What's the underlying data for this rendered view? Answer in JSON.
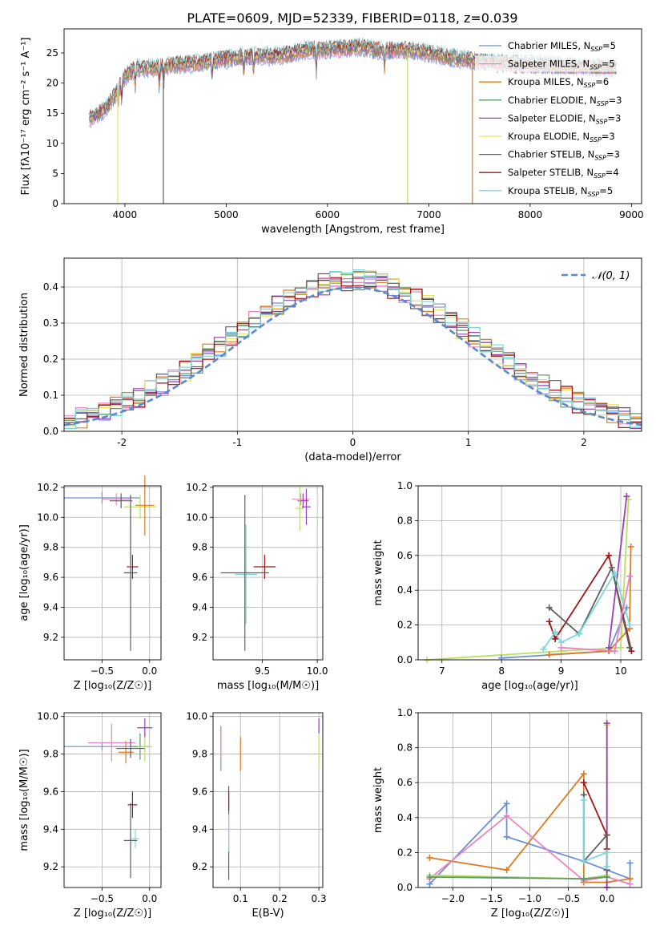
{
  "title": "PLATE=0609, MJD=52339, FIBERID=0118, z=0.039",
  "colors": {
    "c0": "#6a8fd8",
    "c1": "#e983bf",
    "c2": "#e07a1f",
    "c3": "#5a9a6a",
    "c4": "#9b3fb5",
    "c5": "#e8e060",
    "c6": "#5f5f5f",
    "c7": "#a01717",
    "c8": "#7cd8d8",
    "c9": "#b8e060"
  },
  "chart_data": [
    {
      "type": "line",
      "id": "spectrum",
      "xlabel": "wavelength [Angstrom, rest frame]",
      "ylabel": "Flux [fλ10⁻¹⁷ erg cm⁻² s⁻¹ A⁻¹]",
      "xlim": [
        3400,
        9100
      ],
      "ylim": [
        0,
        29
      ],
      "xticks": [
        4000,
        5000,
        6000,
        7000,
        8000,
        9000
      ],
      "yticks": [
        0,
        5,
        10,
        15,
        20,
        25
      ],
      "legend_position": "top-right",
      "series": [
        {
          "name": "Chabrier MILES, NSSP=5",
          "label_main": "Chabrier MILES, N",
          "label_sub": "SSP",
          "label_end": "=5",
          "color": "c0"
        },
        {
          "name": "Salpeter MILES, NSSP=5",
          "label_main": "Salpeter MILES, N",
          "label_sub": "SSP",
          "label_end": "=5",
          "color": "c1"
        },
        {
          "name": "Kroupa MILES, NSSP=6",
          "label_main": "Kroupa MILES, N",
          "label_sub": "SSP",
          "label_end": "=6",
          "color": "c2"
        },
        {
          "name": "Chabrier ELODIE, NSSP=3",
          "label_main": "Chabrier ELODIE, N",
          "label_sub": "SSP",
          "label_end": "=3",
          "color": "c3"
        },
        {
          "name": "Salpeter ELODIE, NSSP=3",
          "label_main": "Salpeter ELODIE, N",
          "label_sub": "SSP",
          "label_end": "=3",
          "color": "c4"
        },
        {
          "name": "Kroupa ELODIE, NSSP=3",
          "label_main": "Kroupa ELODIE, N",
          "label_sub": "SSP",
          "label_end": "=3",
          "color": "c5"
        },
        {
          "name": "Chabrier STELIB, NSSP=3",
          "label_main": "Chabrier STELIB, N",
          "label_sub": "SSP",
          "label_end": "=3",
          "color": "c6"
        },
        {
          "name": "Salpeter STELIB, NSSP=4",
          "label_main": "Salpeter STELIB, N",
          "label_sub": "SSP",
          "label_end": "=4",
          "color": "c7"
        },
        {
          "name": "Kroupa STELIB, NSSP=5",
          "label_main": "Kroupa STELIB, N",
          "label_sub": "SSP",
          "label_end": "=5",
          "color": "c8"
        }
      ],
      "continuum": {
        "x": [
          3650,
          3800,
          3900,
          4000,
          4100,
          4300,
          4500,
          4800,
          5000,
          5200,
          5500,
          5800,
          6000,
          6300,
          6500,
          6800,
          7000,
          7300,
          7600,
          8000,
          8400,
          8850
        ],
        "y": [
          14,
          15.5,
          18,
          21,
          22.5,
          22.5,
          23,
          23.5,
          24,
          24.5,
          24.5,
          25.5,
          25.5,
          26,
          25.5,
          25.5,
          25,
          24,
          23.5,
          23,
          22.8,
          22.5
        ]
      },
      "gaps": [
        {
          "x": 4380,
          "color": "c6"
        },
        {
          "x": 3930,
          "color": "c5"
        },
        {
          "x": 6790,
          "color": "c9"
        },
        {
          "x": 7430,
          "color": "c2"
        }
      ]
    },
    {
      "type": "histogram",
      "id": "residuals",
      "xlabel": "(data-model)/error",
      "ylabel": "Normed distribution",
      "xlim": [
        -2.5,
        2.5
      ],
      "ylim": [
        0,
        0.48
      ],
      "xticks": [
        -2,
        -1,
        0,
        1,
        2
      ],
      "yticks": [
        0,
        0.1,
        0.2,
        0.3,
        0.4
      ],
      "ytick_labels": [
        "0.0",
        "0.1",
        "0.2",
        "0.3",
        "0.4"
      ],
      "bin_width": 0.1,
      "gaussian_label": "𝒩(0, 1)",
      "gaussian_color": "#5b88d0",
      "legend_position": "top-right",
      "histogram_colors": [
        "c0",
        "c1",
        "c2",
        "c3",
        "c4",
        "c5",
        "c6",
        "c7",
        "c8"
      ]
    },
    {
      "type": "scatter",
      "id": "age-vs-z",
      "xlabel": "Z [log₁₀(Z/Z☉)]",
      "ylabel": "age  [log₁₀(age/yr)]",
      "xlim": [
        -0.9,
        0.12
      ],
      "ylim": [
        9.05,
        10.21
      ],
      "xticks": [
        -0.5,
        0.0
      ],
      "xtick_labels": [
        "−0.5",
        "0.0"
      ],
      "yticks": [
        9.2,
        9.4,
        9.6,
        9.8,
        10.0,
        10.2
      ],
      "ytick_labels": [
        "9.2",
        "9.4",
        "9.6",
        "9.8",
        "10.0",
        "10.2"
      ],
      "points": [
        {
          "x": -0.5,
          "y": 10.13,
          "xerr": 0.4,
          "yerr": 0.04,
          "color": "c0"
        },
        {
          "x": -0.35,
          "y": 10.12,
          "xerr": 0.15,
          "yerr": 0.04,
          "color": "c1"
        },
        {
          "x": -0.3,
          "y": 10.11,
          "xerr": 0.12,
          "yerr": 0.05,
          "color": "c6"
        },
        {
          "x": -0.1,
          "y": 10.07,
          "xerr": 0.17,
          "yerr": 0.08,
          "color": "c9"
        },
        {
          "x": -0.05,
          "y": 10.08,
          "xerr": 0.1,
          "yerr": 0.2,
          "color": "c2"
        },
        {
          "x": -0.18,
          "y": 9.67,
          "xerr": 0.06,
          "yerr": 0.08,
          "color": "c7"
        },
        {
          "x": -0.2,
          "y": 9.63,
          "xerr": 0.06,
          "yerr": 0.42,
          "color": "c8"
        },
        {
          "x": -0.2,
          "y": 9.63,
          "xerr": 0.07,
          "yerr": 0.52,
          "color": "c6"
        }
      ]
    },
    {
      "type": "scatter",
      "id": "age-vs-mass",
      "xlabel": "mass [log₁₀(M/M☉)]",
      "ylabel": "",
      "xlim": [
        9.05,
        10.05
      ],
      "ylim": [
        9.05,
        10.21
      ],
      "xticks": [
        9.5,
        10.0
      ],
      "xtick_labels": [
        "9.5",
        "10.0"
      ],
      "yticks": [
        9.2,
        9.4,
        9.6,
        9.8,
        10.0,
        10.2
      ],
      "ytick_labels": [
        "9.2",
        "9.4",
        "9.6",
        "9.8",
        "10.0",
        "10.2"
      ],
      "points": [
        {
          "x": 9.85,
          "y": 10.12,
          "xerr": 0.08,
          "yerr": 0.04,
          "color": "c1"
        },
        {
          "x": 9.87,
          "y": 10.11,
          "xerr": 0.05,
          "yerr": 0.05,
          "color": "c4"
        },
        {
          "x": 9.84,
          "y": 10.06,
          "xerr": 0.04,
          "yerr": 0.15,
          "color": "c9"
        },
        {
          "x": 9.9,
          "y": 10.07,
          "xerr": 0.04,
          "yerr": 0.12,
          "color": "c4"
        },
        {
          "x": 9.52,
          "y": 9.67,
          "xerr": 0.1,
          "yerr": 0.08,
          "color": "c7"
        },
        {
          "x": 9.35,
          "y": 9.62,
          "xerr": 0.1,
          "yerr": 0.33,
          "color": "c8"
        },
        {
          "x": 9.34,
          "y": 9.63,
          "xerr": 0.22,
          "yerr": 0.52,
          "color": "c6"
        }
      ]
    },
    {
      "type": "line",
      "id": "weight-vs-age",
      "xlabel": "age  [log₁₀(age/yr)]",
      "ylabel": "mass weight",
      "xlim": [
        6.6,
        10.35
      ],
      "ylim": [
        0,
        1.0
      ],
      "xticks": [
        7,
        8,
        9,
        10
      ],
      "yticks": [
        0,
        0.2,
        0.4,
        0.6,
        0.8,
        1.0
      ],
      "ytick_labels": [
        "0.0",
        "0.2",
        "0.4",
        "0.6",
        "0.8",
        "1.0"
      ],
      "series": [
        {
          "color": "c9",
          "x": [
            6.75,
            9.0,
            10.0,
            10.13
          ],
          "y": [
            0.0,
            0.05,
            0.07,
            0.92
          ]
        },
        {
          "color": "c0",
          "x": [
            8.0,
            9.8,
            10.1
          ],
          "y": [
            0.01,
            0.05,
            0.3
          ]
        },
        {
          "color": "c2",
          "x": [
            8.8,
            9.8,
            10.15,
            10.17
          ],
          "y": [
            0.03,
            0.05,
            0.18,
            0.65
          ]
        },
        {
          "color": "c4",
          "x": [
            9.8,
            10.1
          ],
          "y": [
            0.07,
            0.94
          ]
        },
        {
          "color": "c7",
          "x": [
            8.8,
            8.9,
            9.8,
            10.18
          ],
          "y": [
            0.22,
            0.12,
            0.6,
            0.05
          ]
        },
        {
          "color": "c6",
          "x": [
            8.8,
            9.3,
            9.85,
            10.15
          ],
          "y": [
            0.3,
            0.15,
            0.53,
            0.07
          ]
        },
        {
          "color": "c8",
          "x": [
            8.7,
            8.9,
            9.0,
            9.3,
            9.9,
            10.15
          ],
          "y": [
            0.06,
            0.16,
            0.1,
            0.15,
            0.5,
            0.2
          ]
        },
        {
          "color": "c1",
          "x": [
            9.0,
            9.9,
            10.15
          ],
          "y": [
            0.07,
            0.05,
            0.48
          ]
        }
      ]
    },
    {
      "type": "scatter",
      "id": "mass-vs-z",
      "xlabel": "Z [log₁₀(Z/Z☉)]",
      "ylabel": "mass [log₁₀(M/M☉)]",
      "xlim": [
        -0.9,
        0.12
      ],
      "ylim": [
        9.09,
        10.02
      ],
      "xticks": [
        -0.5,
        0.0
      ],
      "xtick_labels": [
        "−0.5",
        "0.0"
      ],
      "yticks": [
        9.2,
        9.4,
        9.6,
        9.8,
        10.0
      ],
      "ytick_labels": [
        "9.2",
        "9.4",
        "9.6",
        "9.8",
        "10.0"
      ],
      "points": [
        {
          "x": -0.5,
          "y": 9.84,
          "xerr": 0.4,
          "yerr": 0.02,
          "color": "c0"
        },
        {
          "x": -0.4,
          "y": 9.86,
          "xerr": 0.25,
          "yerr": 0.1,
          "color": "c1"
        },
        {
          "x": -0.25,
          "y": 9.81,
          "xerr": 0.08,
          "yerr": 0.06,
          "color": "c2"
        },
        {
          "x": -0.2,
          "y": 9.83,
          "xerr": 0.15,
          "yerr": 0.05,
          "color": "c6"
        },
        {
          "x": -0.1,
          "y": 9.84,
          "xerr": 0.1,
          "yerr": 0.07,
          "color": "c3"
        },
        {
          "x": -0.05,
          "y": 9.84,
          "xerr": 0.08,
          "yerr": 0.08,
          "color": "c9"
        },
        {
          "x": -0.05,
          "y": 9.94,
          "xerr": 0.08,
          "yerr": 0.05,
          "color": "c4"
        },
        {
          "x": -0.18,
          "y": 9.53,
          "xerr": 0.05,
          "yerr": 0.07,
          "color": "c7"
        },
        {
          "x": -0.15,
          "y": 9.35,
          "xerr": 0.04,
          "yerr": 0.05,
          "color": "c8"
        },
        {
          "x": -0.2,
          "y": 9.34,
          "xerr": 0.07,
          "yerr": 0.2,
          "color": "c6"
        }
      ]
    },
    {
      "type": "scatter",
      "id": "mass-vs-ebv",
      "xlabel": "E(B-V)",
      "ylabel": "",
      "xlim": [
        0.03,
        0.31
      ],
      "ylim": [
        9.09,
        10.02
      ],
      "xticks": [
        0.1,
        0.2,
        0.3
      ],
      "xtick_labels": [
        "0.1",
        "0.2",
        "0.3"
      ],
      "yticks": [
        9.2,
        9.4,
        9.6,
        9.8,
        10.0
      ],
      "ytick_labels": [
        "9.2",
        "9.4",
        "9.6",
        "9.8",
        "10.0"
      ],
      "points": [
        {
          "x": 0.05,
          "y": 9.83,
          "xerr": 0.0,
          "yerr": 0.12,
          "color": "c0"
        },
        {
          "x": 0.05,
          "y": 9.86,
          "xerr": 0.0,
          "yerr": 0.08,
          "color": "c1"
        },
        {
          "x": 0.1,
          "y": 9.8,
          "xerr": 0.0,
          "yerr": 0.09,
          "color": "c2"
        },
        {
          "x": 0.07,
          "y": 9.38,
          "xerr": 0.0,
          "yerr": 0.25,
          "color": "c6"
        },
        {
          "x": 0.07,
          "y": 9.55,
          "xerr": 0.0,
          "yerr": 0.05,
          "color": "c7"
        },
        {
          "x": 0.07,
          "y": 9.38,
          "xerr": 0.0,
          "yerr": 0.1,
          "color": "c8"
        },
        {
          "x": 0.3,
          "y": 9.85,
          "xerr": 0.0,
          "yerr": 0.12,
          "color": "c9"
        },
        {
          "x": 0.3,
          "y": 9.95,
          "xerr": 0.0,
          "yerr": 0.04,
          "color": "c4"
        }
      ]
    },
    {
      "type": "line",
      "id": "weight-vs-z",
      "xlabel": "Z [log₁₀(Z/Z☉)]",
      "ylabel": "mass weight",
      "xlim": [
        -2.45,
        0.45
      ],
      "ylim": [
        0,
        1.0
      ],
      "xticks": [
        -2.0,
        -1.5,
        -1.0,
        -0.5,
        0.0
      ],
      "xtick_labels": [
        "−2.0",
        "−1.5",
        "−1.0",
        "−0.5",
        "0.0"
      ],
      "yticks": [
        0,
        0.2,
        0.4,
        0.6,
        0.8,
        1.0
      ],
      "ytick_labels": [
        "0.0",
        "0.2",
        "0.4",
        "0.6",
        "0.8",
        "1.0"
      ],
      "series": [
        {
          "color": "c0",
          "x": [
            -2.3,
            -1.3,
            -1.3,
            -0.3,
            0.0,
            0.3,
            0.3
          ],
          "y": [
            0.02,
            0.48,
            0.29,
            0.15,
            0.1,
            0.05,
            0.14
          ]
        },
        {
          "color": "c2",
          "x": [
            -2.3,
            -1.3,
            -0.3,
            -0.3,
            0.0,
            0.3
          ],
          "y": [
            0.17,
            0.1,
            0.65,
            0.03,
            0.03,
            0.05
          ]
        },
        {
          "color": "c1",
          "x": [
            -2.3,
            -1.3,
            -0.3,
            0.0,
            0.3
          ],
          "y": [
            0.05,
            0.41,
            0.04,
            0.06,
            0.02
          ]
        },
        {
          "color": "c9",
          "x": [
            -2.3,
            -0.3,
            0.0,
            0.0
          ],
          "y": [
            0.07,
            0.05,
            0.07,
            0.93
          ]
        },
        {
          "color": "c4",
          "x": [
            0.0,
            0.0
          ],
          "y": [
            0.0,
            0.94
          ]
        },
        {
          "color": "c7",
          "x": [
            -0.3,
            0.0,
            0.0
          ],
          "y": [
            0.6,
            0.3,
            0.22
          ]
        },
        {
          "color": "c6",
          "x": [
            -0.3,
            -0.3,
            0.0,
            0.0
          ],
          "y": [
            0.53,
            0.15,
            0.3,
            0.1
          ]
        },
        {
          "color": "c8",
          "x": [
            -0.3,
            -0.3,
            0.0,
            0.0
          ],
          "y": [
            0.5,
            0.15,
            0.2,
            0.12
          ]
        },
        {
          "color": "c3",
          "x": [
            -2.3,
            -0.3,
            0.0
          ],
          "y": [
            0.06,
            0.05,
            0.06
          ]
        }
      ]
    }
  ]
}
